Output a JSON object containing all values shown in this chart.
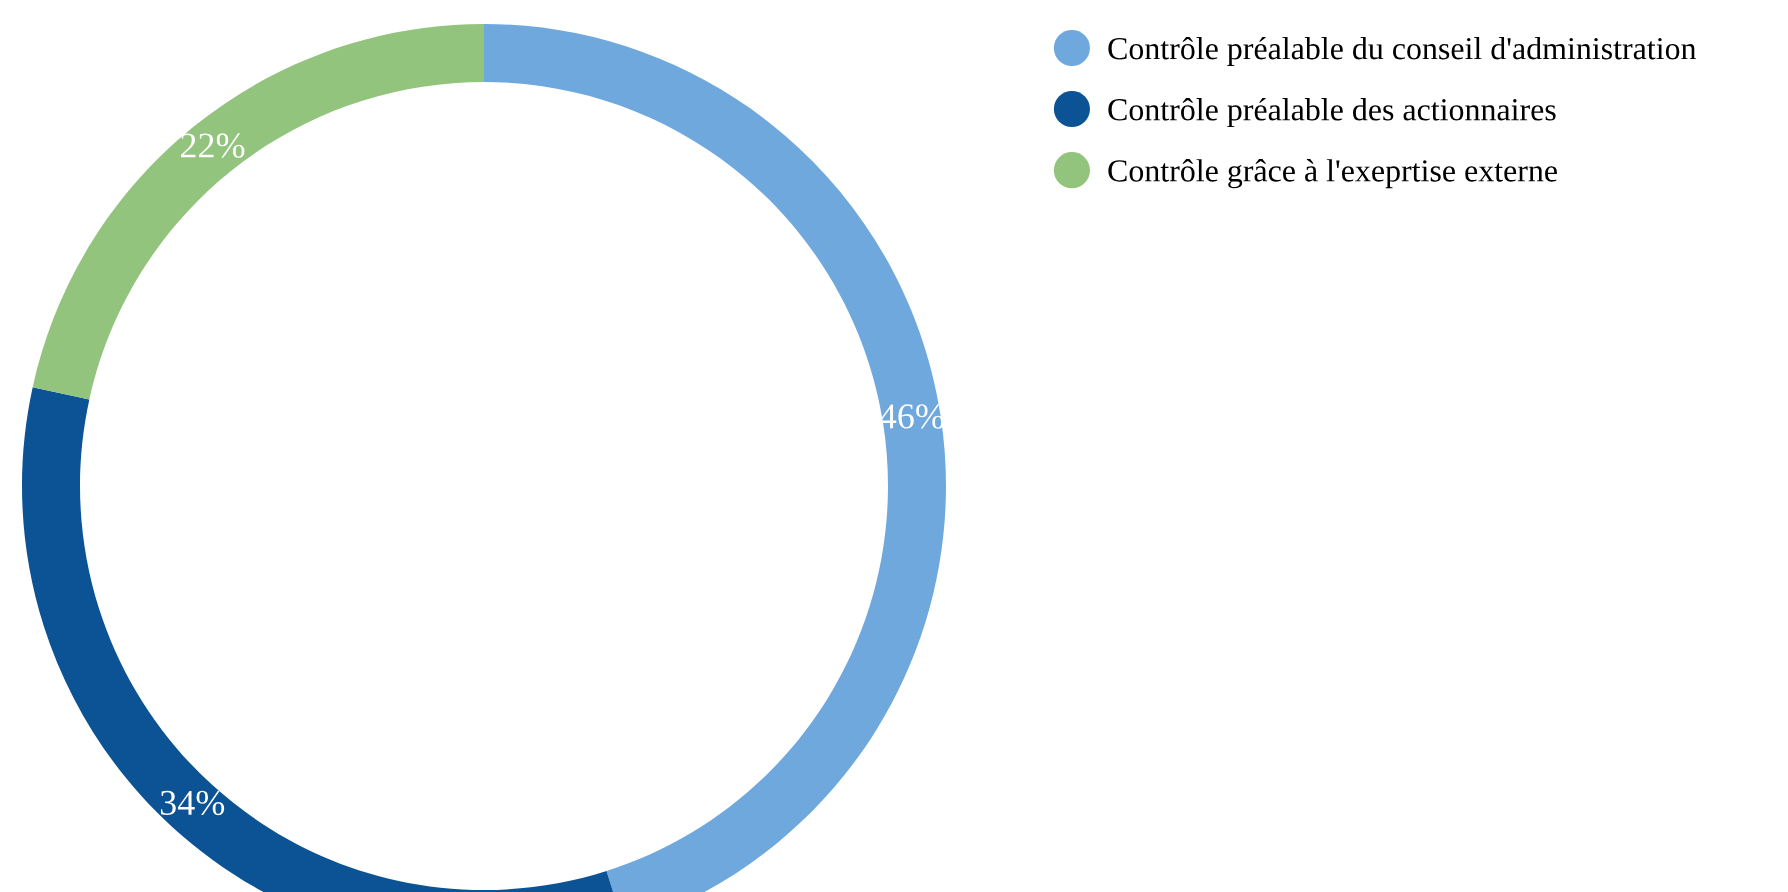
{
  "chart_data": {
    "type": "donut",
    "categories": [
      "Contrôle préalable du conseil d'administration",
      "Contrôle préalable des actionnaires",
      "Contrôle grâce à l'exeprtise externe"
    ],
    "values": [
      46,
      34,
      22
    ],
    "colors": [
      "#6fa8dc",
      "#0b5394",
      "#93c47d"
    ],
    "value_labels": [
      "46%",
      "34%",
      "22%"
    ],
    "legend": "top right"
  }
}
